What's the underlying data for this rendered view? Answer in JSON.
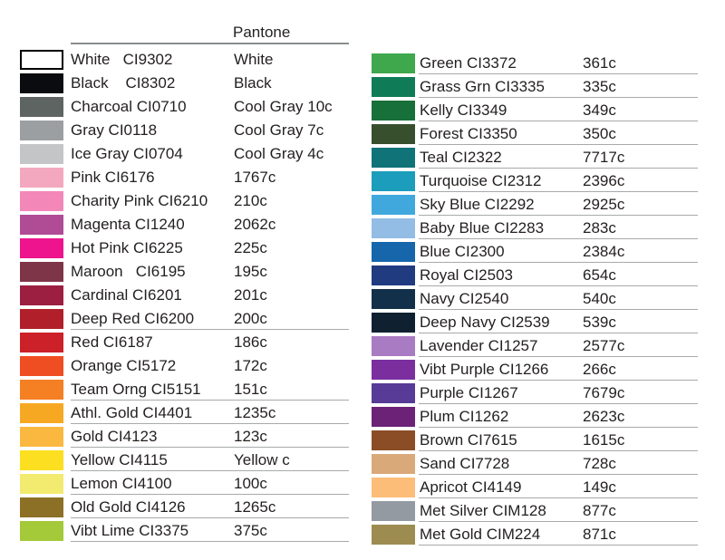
{
  "header": {
    "pantone_label": "Pantone"
  },
  "colors": {
    "text": "#231f20",
    "header_rule": "#8a8c8e",
    "row_separator": "#a7a9ac"
  },
  "columns": {
    "left": [
      {
        "label": "White   CI9302",
        "pantone": "White",
        "color": "#ffffff",
        "border": true,
        "underline": false
      },
      {
        "label": "Black    CI8302",
        "pantone": "Black",
        "color": "#0b0c10",
        "border": false,
        "underline": false
      },
      {
        "label": "Charcoal CI0710",
        "pantone": "Cool Gray 10c",
        "color": "#5e6462",
        "border": false,
        "underline": false
      },
      {
        "label": "Gray CI0118",
        "pantone": "Cool Gray 7c",
        "color": "#9c9fa1",
        "border": false,
        "underline": false
      },
      {
        "label": "Ice Gray CI0704",
        "pantone": "Cool Gray 4c",
        "color": "#c4c5c7",
        "border": false,
        "underline": false
      },
      {
        "label": "Pink CI6176",
        "pantone": "1767c",
        "color": "#f4a8bf",
        "border": false,
        "underline": false
      },
      {
        "label": "Charity Pink CI6210",
        "pantone": "210c",
        "color": "#f287b8",
        "border": false,
        "underline": false
      },
      {
        "label": "Magenta CI1240",
        "pantone": "2062c",
        "color": "#b04b96",
        "border": false,
        "underline": false
      },
      {
        "label": "Hot Pink CI6225",
        "pantone": "225c",
        "color": "#ed148d",
        "border": false,
        "underline": false
      },
      {
        "label": "Maroon   CI6195",
        "pantone": "195c",
        "color": "#7e3548",
        "border": false,
        "underline": false
      },
      {
        "label": "Cardinal CI6201",
        "pantone": "201c",
        "color": "#9c1e41",
        "border": false,
        "underline": false
      },
      {
        "label": "Deep Red CI6200",
        "pantone": "200c",
        "color": "#b1202a",
        "border": false,
        "underline": true
      },
      {
        "label": "Red CI6187",
        "pantone": "186c",
        "color": "#cc2128",
        "border": false,
        "underline": false
      },
      {
        "label": "Orange CI5172",
        "pantone": "172c",
        "color": "#ef4e23",
        "border": false,
        "underline": false
      },
      {
        "label": "Team Orng CI5151",
        "pantone": "151c",
        "color": "#f57f23",
        "border": false,
        "underline": true
      },
      {
        "label": "Athl. Gold CI4401",
        "pantone": "1235c",
        "color": "#f7a823",
        "border": false,
        "underline": true
      },
      {
        "label": "Gold CI4123",
        "pantone": "123c",
        "color": "#fbb841",
        "border": false,
        "underline": true
      },
      {
        "label": "Yellow CI4115",
        "pantone": "Yellow c",
        "color": "#fbdf20",
        "border": false,
        "underline": true
      },
      {
        "label": "Lemon CI4100",
        "pantone": "100c",
        "color": "#f3ea70",
        "border": false,
        "underline": true
      },
      {
        "label": "Old Gold CI4126",
        "pantone": "1265c",
        "color": "#8c7026",
        "border": false,
        "underline": true
      },
      {
        "label": "Vibt Lime CI3375",
        "pantone": "375c",
        "color": "#a4c939",
        "border": false,
        "underline": true
      }
    ],
    "right": [
      {
        "label": "Green CI3372",
        "pantone": "361c",
        "color": "#3fa84c",
        "border": false,
        "underline": true
      },
      {
        "label": "Grass Grn CI3335",
        "pantone": "335c",
        "color": "#107c57",
        "border": false,
        "underline": true
      },
      {
        "label": "Kelly CI3349",
        "pantone": "349c",
        "color": "#177039",
        "border": false,
        "underline": true
      },
      {
        "label": "Forest CI3350",
        "pantone": "350c",
        "color": "#384f2e",
        "border": false,
        "underline": true
      },
      {
        "label": "Teal CI2322",
        "pantone": "7717c",
        "color": "#0f7378",
        "border": false,
        "underline": true
      },
      {
        "label": "Turquoise CI2312",
        "pantone": "2396c",
        "color": "#1b9dbb",
        "border": false,
        "underline": true
      },
      {
        "label": "Sky Blue CI2292",
        "pantone": "2925c",
        "color": "#41a8de",
        "border": false,
        "underline": true
      },
      {
        "label": "Baby Blue CI2283",
        "pantone": "283c",
        "color": "#93bde5",
        "border": false,
        "underline": true
      },
      {
        "label": "Blue CI2300",
        "pantone": "2384c",
        "color": "#1766ac",
        "border": false,
        "underline": true
      },
      {
        "label": "Royal CI2503",
        "pantone": "654c",
        "color": "#203b80",
        "border": false,
        "underline": true
      },
      {
        "label": "Navy CI2540",
        "pantone": "540c",
        "color": "#12304a",
        "border": false,
        "underline": true
      },
      {
        "label": "Deep Navy CI2539",
        "pantone": "539c",
        "color": "#0f2130",
        "border": false,
        "underline": true
      },
      {
        "label": "Lavender CI1257",
        "pantone": "2577c",
        "color": "#a97bc3",
        "border": false,
        "underline": true
      },
      {
        "label": "Vibt Purple CI1266",
        "pantone": "266c",
        "color": "#7b2f9f",
        "border": false,
        "underline": true
      },
      {
        "label": "Purple CI1267",
        "pantone": "7679c",
        "color": "#573b96",
        "border": false,
        "underline": true
      },
      {
        "label": "Plum CI1262",
        "pantone": "2623c",
        "color": "#6b2277",
        "border": false,
        "underline": true
      },
      {
        "label": "Brown CI7615",
        "pantone": "1615c",
        "color": "#8b4d25",
        "border": false,
        "underline": true
      },
      {
        "label": "Sand CI7728",
        "pantone": "728c",
        "color": "#d9a97a",
        "border": false,
        "underline": true
      },
      {
        "label": "Apricot CI4149",
        "pantone": "149c",
        "color": "#fcbd79",
        "border": false,
        "underline": true
      },
      {
        "label": "Met Silver CIM128",
        "pantone": "877c",
        "color": "#949aa1",
        "border": false,
        "underline": true
      },
      {
        "label": "Met Gold CIM224",
        "pantone": "871c",
        "color": "#9c8c50",
        "border": false,
        "underline": true
      }
    ]
  }
}
